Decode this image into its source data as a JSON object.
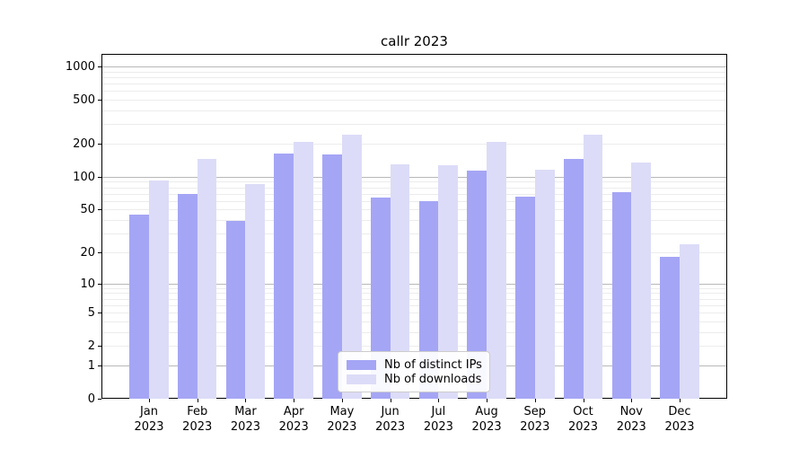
{
  "chart": {
    "colors": {
      "ips_bar": "#a5a5f5",
      "downloads_bar": "#dcdcf8",
      "major_grid": "#b8b8b8",
      "minor_grid": "#ececec",
      "spine": "#000000",
      "text": "#000000",
      "legend_border": "#cccccc",
      "legend_bg": "#ffffff"
    }
  },
  "chart_data": {
    "type": "bar",
    "title": "callr 2023",
    "categories": [
      "Jan 2023",
      "Feb 2023",
      "Mar 2023",
      "Apr 2023",
      "May 2023",
      "Jun 2023",
      "Jul 2023",
      "Aug 2023",
      "Sep 2023",
      "Oct 2023",
      "Nov 2023",
      "Dec 2023"
    ],
    "series": [
      {
        "name": "Nb of distinct IPs",
        "values": [
          45,
          70,
          39,
          162,
          160,
          64,
          60,
          114,
          66,
          144,
          73,
          18
        ]
      },
      {
        "name": "Nb of downloads",
        "values": [
          92,
          145,
          86,
          207,
          243,
          131,
          128,
          208,
          116,
          242,
          136,
          24
        ]
      }
    ],
    "xlabel": "",
    "ylabel": "",
    "yscale": "log1p",
    "yticks": [
      0,
      1,
      2,
      5,
      10,
      20,
      50,
      100,
      200,
      500,
      1000
    ],
    "minor_yticks_pattern": "2-9 per decade",
    "ylim": [
      0,
      1300
    ],
    "grid": "horizontal major+minor",
    "legend_position": "lower center inside plot"
  }
}
